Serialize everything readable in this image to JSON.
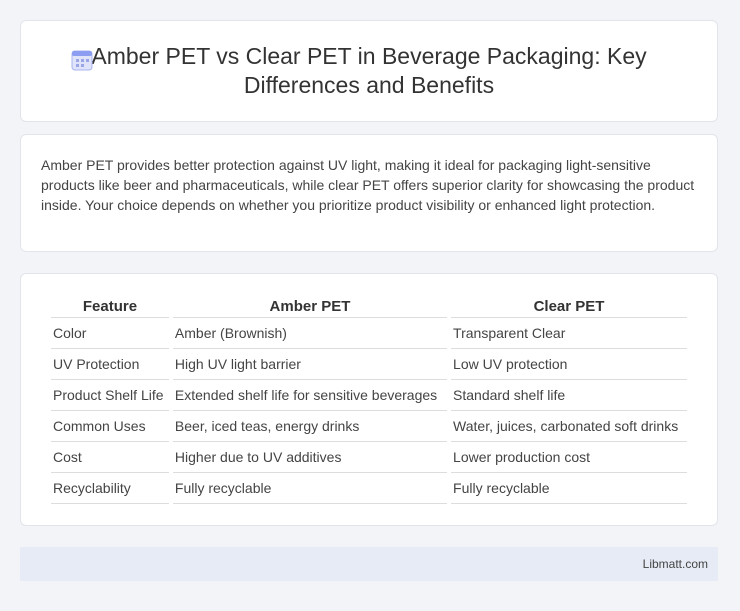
{
  "header": {
    "title": "Amber PET vs Clear PET in Beverage Packaging: Key Differences and Benefits"
  },
  "summary": "Amber PET provides better protection against UV light, making it ideal for packaging light-sensitive products like beer and pharmaceuticals, while clear PET offers superior clarity for showcasing the product inside. Your choice depends on whether you prioritize product visibility or enhanced light protection.",
  "table": {
    "columns": [
      "Feature",
      "Amber PET",
      "Clear PET"
    ],
    "rows": [
      [
        "Color",
        "Amber (Brownish)",
        "Transparent Clear"
      ],
      [
        "UV Protection",
        "High UV light barrier",
        "Low UV protection"
      ],
      [
        "Product Shelf Life",
        "Extended shelf life for sensitive beverages",
        "Standard shelf life"
      ],
      [
        "Common Uses",
        "Beer, iced teas, energy drinks",
        "Water, juices, carbonated soft drinks"
      ],
      [
        "Cost",
        "Higher due to UV additives",
        "Lower production cost"
      ],
      [
        "Recyclability",
        "Fully recyclable",
        "Fully recyclable"
      ]
    ]
  },
  "footer": {
    "source": "Libmatt.com"
  }
}
